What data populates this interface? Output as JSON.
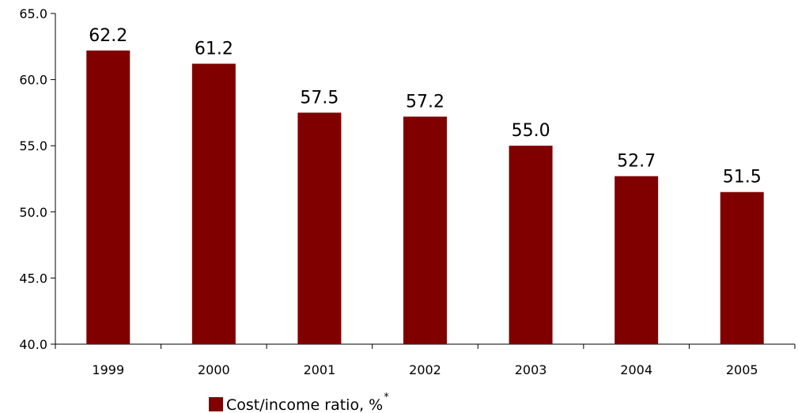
{
  "chart_data": {
    "type": "bar",
    "title": "",
    "xlabel": "",
    "ylabel": "",
    "categories": [
      "1999",
      "2000",
      "2001",
      "2002",
      "2003",
      "2004",
      "2005"
    ],
    "series": [
      {
        "name": "Cost/income ratio, %",
        "values": [
          62.2,
          61.2,
          57.5,
          57.2,
          55.0,
          52.7,
          51.5
        ],
        "value_labels": [
          "62.2",
          "61.2",
          "57.5",
          "57.2",
          "55.0",
          "52.7",
          "51.5"
        ],
        "color": "#800000"
      }
    ],
    "ylim": [
      40.0,
      65.0
    ],
    "yticks": [
      40.0,
      45.0,
      50.0,
      55.0,
      60.0,
      65.0
    ],
    "ytick_labels": [
      "40.0",
      "45.0",
      "50.0",
      "55.0",
      "60.0",
      "65.0"
    ],
    "grid": false,
    "legend": {
      "position": "bottom",
      "label": "Cost/income ratio, %",
      "superscript": "*"
    }
  }
}
